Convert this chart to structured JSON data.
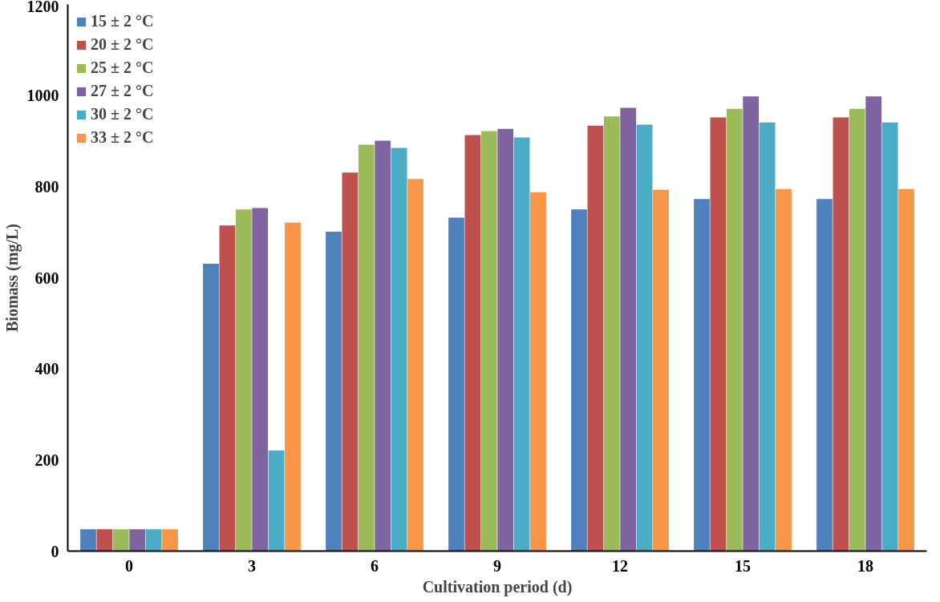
{
  "chart_data": {
    "type": "bar",
    "xlabel": "Cultivation period (d)",
    "ylabel": "Biomass (mg/L)",
    "categories": [
      "0",
      "3",
      "6",
      "9",
      "12",
      "15",
      "18"
    ],
    "series": [
      {
        "name": "15 ± 2 °C",
        "color": "#4f81bd",
        "values": [
          48,
          631,
          701,
          732,
          750,
          773,
          773
        ]
      },
      {
        "name": "20 ± 2 °C",
        "color": "#c0504d",
        "values": [
          48,
          715,
          831,
          913,
          934,
          952,
          952
        ]
      },
      {
        "name": "25 ± 2 °C",
        "color": "#9bbb59",
        "values": [
          48,
          750,
          892,
          922,
          954,
          971,
          971
        ]
      },
      {
        "name": "27 ± 2 °C",
        "color": "#8064a2",
        "values": [
          48,
          753,
          901,
          927,
          973,
          998,
          998
        ]
      },
      {
        "name": "30 ± 2 °C",
        "color": "#4bacc6",
        "values": [
          48,
          221,
          885,
          908,
          936,
          941,
          941
        ]
      },
      {
        "name": "33 ± 2 °C",
        "color": "#f79646",
        "values": [
          48,
          721,
          817,
          788,
          793,
          795,
          795
        ]
      }
    ],
    "ylim": [
      0,
      1200
    ],
    "yticks": [
      0,
      200,
      400,
      600,
      800,
      1000,
      1200
    ],
    "grid": false,
    "legend": "top left"
  }
}
